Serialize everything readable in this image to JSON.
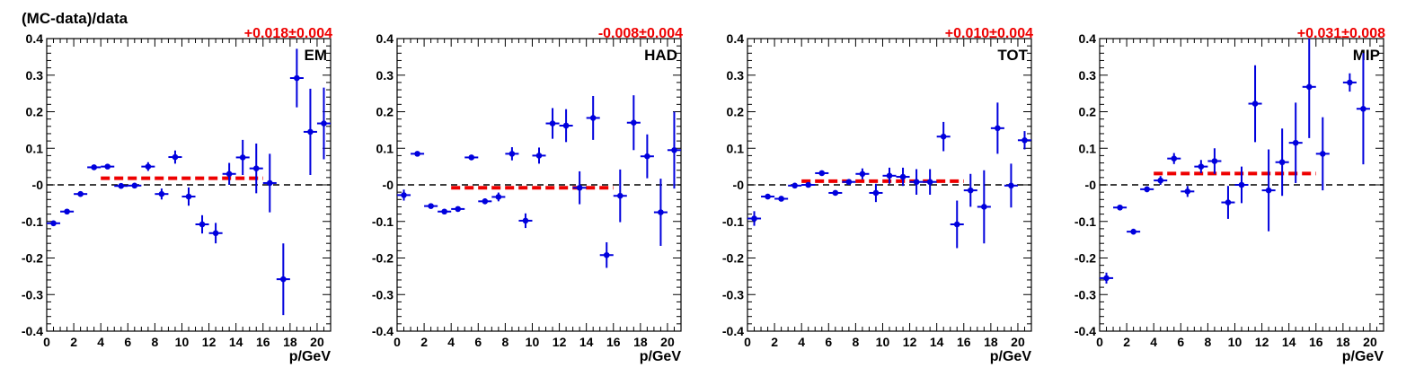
{
  "ylabel": "(MC-data)/data",
  "colors": {
    "points": "#0000dd",
    "fit": "#ee0000",
    "reference": "#000000"
  },
  "chart_data": [
    {
      "type": "scatter",
      "panel_label": "EM",
      "fit_label": "+0.018±0.004",
      "fit_value": 0.018,
      "fit_range": [
        4,
        16
      ],
      "xlabel": "p/GeV",
      "xlim": [
        0,
        21
      ],
      "ylim": [
        -0.4,
        0.4
      ],
      "xticks": [
        "0",
        "2",
        "4",
        "6",
        "8",
        "10",
        "12",
        "14",
        "16",
        "18",
        "20"
      ],
      "yticks": [
        "-0.4",
        "-0.3",
        "-0.2",
        "-0.1",
        "-0",
        "0.1",
        "0.2",
        "0.3",
        "0.4"
      ],
      "points": [
        {
          "x": 0.5,
          "y": -0.105,
          "err": 0.005
        },
        {
          "x": 1.5,
          "y": -0.073,
          "err": 0.005
        },
        {
          "x": 2.5,
          "y": -0.025,
          "err": 0.005
        },
        {
          "x": 3.5,
          "y": 0.048,
          "err": 0.005
        },
        {
          "x": 4.5,
          "y": 0.05,
          "err": 0.005
        },
        {
          "x": 5.5,
          "y": -0.003,
          "err": 0.005
        },
        {
          "x": 6.5,
          "y": -0.002,
          "err": 0.005
        },
        {
          "x": 7.5,
          "y": 0.05,
          "err": 0.012
        },
        {
          "x": 8.5,
          "y": -0.025,
          "err": 0.015
        },
        {
          "x": 9.5,
          "y": 0.076,
          "err": 0.018
        },
        {
          "x": 10.5,
          "y": -0.032,
          "err": 0.025
        },
        {
          "x": 11.5,
          "y": -0.108,
          "err": 0.025
        },
        {
          "x": 12.5,
          "y": -0.132,
          "err": 0.028
        },
        {
          "x": 13.5,
          "y": 0.03,
          "err": 0.03
        },
        {
          "x": 14.5,
          "y": 0.075,
          "err": 0.048
        },
        {
          "x": 15.5,
          "y": 0.045,
          "err": 0.068
        },
        {
          "x": 16.5,
          "y": 0.005,
          "err": 0.08
        },
        {
          "x": 17.5,
          "y": -0.258,
          "err": 0.098
        },
        {
          "x": 18.5,
          "y": 0.292,
          "err": 0.08
        },
        {
          "x": 19.5,
          "y": 0.145,
          "err": 0.118
        },
        {
          "x": 20.5,
          "y": 0.168,
          "err": 0.098
        }
      ]
    },
    {
      "type": "scatter",
      "panel_label": "HAD",
      "fit_label": "-0.008±0.004",
      "fit_value": -0.008,
      "fit_range": [
        4,
        16
      ],
      "xlabel": "p/GeV",
      "xlim": [
        0,
        21
      ],
      "ylim": [
        -0.4,
        0.4
      ],
      "xticks": [
        "0",
        "2",
        "4",
        "6",
        "8",
        "10",
        "12",
        "14",
        "16",
        "18",
        "20"
      ],
      "yticks": [
        "-0.4",
        "-0.3",
        "-0.2",
        "-0.1",
        "-0",
        "0.1",
        "0.2",
        "0.3",
        "0.4"
      ],
      "points": [
        {
          "x": 0.5,
          "y": -0.028,
          "err": 0.015
        },
        {
          "x": 1.5,
          "y": 0.085,
          "err": 0.005
        },
        {
          "x": 2.5,
          "y": -0.058,
          "err": 0.005
        },
        {
          "x": 3.5,
          "y": -0.073,
          "err": 0.005
        },
        {
          "x": 4.5,
          "y": -0.066,
          "err": 0.005
        },
        {
          "x": 5.5,
          "y": 0.075,
          "err": 0.005
        },
        {
          "x": 6.5,
          "y": -0.045,
          "err": 0.008
        },
        {
          "x": 7.5,
          "y": -0.033,
          "err": 0.012
        },
        {
          "x": 8.5,
          "y": 0.085,
          "err": 0.018
        },
        {
          "x": 9.5,
          "y": -0.098,
          "err": 0.02
        },
        {
          "x": 10.5,
          "y": 0.08,
          "err": 0.022
        },
        {
          "x": 11.5,
          "y": 0.168,
          "err": 0.042
        },
        {
          "x": 12.5,
          "y": 0.162,
          "err": 0.045
        },
        {
          "x": 13.5,
          "y": -0.008,
          "err": 0.045
        },
        {
          "x": 14.5,
          "y": 0.183,
          "err": 0.06
        },
        {
          "x": 15.5,
          "y": -0.192,
          "err": 0.035
        },
        {
          "x": 16.5,
          "y": -0.03,
          "err": 0.072
        },
        {
          "x": 17.5,
          "y": 0.17,
          "err": 0.075
        },
        {
          "x": 18.5,
          "y": 0.078,
          "err": 0.06
        },
        {
          "x": 19.5,
          "y": -0.075,
          "err": 0.092
        },
        {
          "x": 20.5,
          "y": 0.095,
          "err": 0.105
        }
      ]
    },
    {
      "type": "scatter",
      "panel_label": "TOT",
      "fit_label": "+0.010±0.004",
      "fit_value": 0.01,
      "fit_range": [
        4,
        16
      ],
      "xlabel": "p/GeV",
      "xlim": [
        0,
        21
      ],
      "ylim": [
        -0.4,
        0.4
      ],
      "xticks": [
        "0",
        "2",
        "4",
        "6",
        "8",
        "10",
        "12",
        "14",
        "16",
        "18",
        "20"
      ],
      "yticks": [
        "-0.4",
        "-0.3",
        "-0.2",
        "-0.1",
        "-0",
        "0.1",
        "0.2",
        "0.3",
        "0.4"
      ],
      "points": [
        {
          "x": 0.5,
          "y": -0.092,
          "err": 0.02
        },
        {
          "x": 1.5,
          "y": -0.032,
          "err": 0.005
        },
        {
          "x": 2.5,
          "y": -0.038,
          "err": 0.005
        },
        {
          "x": 3.5,
          "y": -0.002,
          "err": 0.005
        },
        {
          "x": 4.5,
          "y": 0.0,
          "err": 0.005
        },
        {
          "x": 5.5,
          "y": 0.032,
          "err": 0.005
        },
        {
          "x": 6.5,
          "y": -0.022,
          "err": 0.005
        },
        {
          "x": 7.5,
          "y": 0.008,
          "err": 0.008
        },
        {
          "x": 8.5,
          "y": 0.03,
          "err": 0.015
        },
        {
          "x": 9.5,
          "y": -0.022,
          "err": 0.025
        },
        {
          "x": 10.5,
          "y": 0.025,
          "err": 0.022
        },
        {
          "x": 11.5,
          "y": 0.022,
          "err": 0.025
        },
        {
          "x": 12.5,
          "y": 0.008,
          "err": 0.035
        },
        {
          "x": 13.5,
          "y": 0.008,
          "err": 0.035
        },
        {
          "x": 14.5,
          "y": 0.132,
          "err": 0.04
        },
        {
          "x": 15.5,
          "y": -0.108,
          "err": 0.065
        },
        {
          "x": 16.5,
          "y": -0.015,
          "err": 0.045
        },
        {
          "x": 17.5,
          "y": -0.06,
          "err": 0.1
        },
        {
          "x": 18.5,
          "y": 0.155,
          "err": 0.07
        },
        {
          "x": 19.5,
          "y": -0.002,
          "err": 0.06
        },
        {
          "x": 20.5,
          "y": 0.122,
          "err": 0.025
        }
      ]
    },
    {
      "type": "scatter",
      "panel_label": "MIP",
      "fit_label": "+0.031±0.008",
      "fit_value": 0.031,
      "fit_range": [
        4,
        16
      ],
      "xlabel": "p/GeV",
      "xlim": [
        0,
        21
      ],
      "ylim": [
        -0.4,
        0.4
      ],
      "xticks": [
        "0",
        "2",
        "4",
        "6",
        "8",
        "10",
        "12",
        "14",
        "16",
        "18",
        "20"
      ],
      "yticks": [
        "-0.4",
        "-0.3",
        "-0.2",
        "-0.1",
        "-0",
        "0.1",
        "0.2",
        "0.3",
        "0.4"
      ],
      "points": [
        {
          "x": 0.5,
          "y": -0.255,
          "err": 0.015
        },
        {
          "x": 1.5,
          "y": -0.062,
          "err": 0.005
        },
        {
          "x": 2.5,
          "y": -0.128,
          "err": 0.008
        },
        {
          "x": 3.5,
          "y": -0.012,
          "err": 0.008
        },
        {
          "x": 4.5,
          "y": 0.012,
          "err": 0.012
        },
        {
          "x": 5.5,
          "y": 0.072,
          "err": 0.015
        },
        {
          "x": 6.5,
          "y": -0.018,
          "err": 0.015
        },
        {
          "x": 7.5,
          "y": 0.05,
          "err": 0.018
        },
        {
          "x": 8.5,
          "y": 0.065,
          "err": 0.035
        },
        {
          "x": 9.5,
          "y": -0.048,
          "err": 0.045
        },
        {
          "x": 10.5,
          "y": 0.0,
          "err": 0.05
        },
        {
          "x": 11.5,
          "y": 0.222,
          "err": 0.105
        },
        {
          "x": 12.5,
          "y": -0.015,
          "err": 0.112
        },
        {
          "x": 13.5,
          "y": 0.062,
          "err": 0.092
        },
        {
          "x": 14.5,
          "y": 0.115,
          "err": 0.11
        },
        {
          "x": 15.5,
          "y": 0.268,
          "err": 0.14
        },
        {
          "x": 16.5,
          "y": 0.085,
          "err": 0.1
        },
        {
          "x": 18.5,
          "y": 0.28,
          "err": 0.025
        },
        {
          "x": 19.5,
          "y": 0.208,
          "err": 0.152
        }
      ]
    }
  ]
}
